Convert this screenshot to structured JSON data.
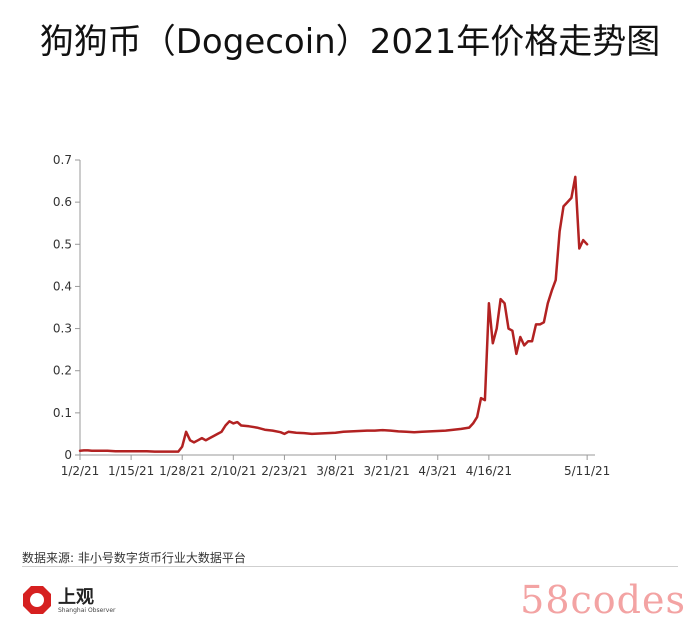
{
  "chart_data": {
    "type": "line",
    "title": "狗狗币（Dogecoin）2021年价格走势图",
    "xlabel": "",
    "ylabel": "",
    "ylim": [
      0,
      0.7
    ],
    "yticks": [
      "0",
      "0.1",
      "0.2",
      "0.3",
      "0.4",
      "0.5",
      "0.6",
      "0.7"
    ],
    "x_range": [
      "2021-01-02",
      "2021-05-13"
    ],
    "xticks": [
      {
        "date": "2021-01-02",
        "label": "1/2/21"
      },
      {
        "date": "2021-01-15",
        "label": "1/15/21"
      },
      {
        "date": "2021-01-28",
        "label": "1/28/21"
      },
      {
        "date": "2021-02-10",
        "label": "2/10/21"
      },
      {
        "date": "2021-02-23",
        "label": "2/23/21"
      },
      {
        "date": "2021-03-08",
        "label": "3/8/21"
      },
      {
        "date": "2021-03-21",
        "label": "3/21/21"
      },
      {
        "date": "2021-04-03",
        "label": "4/3/21"
      },
      {
        "date": "2021-04-16",
        "label": "4/16/21"
      },
      {
        "date": "2021-05-11",
        "label": "5/11/21"
      }
    ],
    "grid": false,
    "line_color": "#b22222",
    "series": [
      {
        "points": [
          [
            "2021-01-02",
            0.01
          ],
          [
            "2021-01-03",
            0.011
          ],
          [
            "2021-01-04",
            0.011
          ],
          [
            "2021-01-05",
            0.01
          ],
          [
            "2021-01-07",
            0.01
          ],
          [
            "2021-01-09",
            0.01
          ],
          [
            "2021-01-11",
            0.009
          ],
          [
            "2021-01-13",
            0.009
          ],
          [
            "2021-01-15",
            0.009
          ],
          [
            "2021-01-17",
            0.009
          ],
          [
            "2021-01-19",
            0.009
          ],
          [
            "2021-01-21",
            0.008
          ],
          [
            "2021-01-23",
            0.008
          ],
          [
            "2021-01-25",
            0.008
          ],
          [
            "2021-01-27",
            0.008
          ],
          [
            "2021-01-28",
            0.02
          ],
          [
            "2021-01-29",
            0.055
          ],
          [
            "2021-01-30",
            0.035
          ],
          [
            "2021-01-31",
            0.03
          ],
          [
            "2021-02-01",
            0.035
          ],
          [
            "2021-02-02",
            0.04
          ],
          [
            "2021-02-03",
            0.035
          ],
          [
            "2021-02-04",
            0.04
          ],
          [
            "2021-02-05",
            0.045
          ],
          [
            "2021-02-06",
            0.05
          ],
          [
            "2021-02-07",
            0.055
          ],
          [
            "2021-02-08",
            0.07
          ],
          [
            "2021-02-09",
            0.08
          ],
          [
            "2021-02-10",
            0.075
          ],
          [
            "2021-02-11",
            0.078
          ],
          [
            "2021-02-12",
            0.07
          ],
          [
            "2021-02-14",
            0.068
          ],
          [
            "2021-02-16",
            0.065
          ],
          [
            "2021-02-18",
            0.06
          ],
          [
            "2021-02-20",
            0.058
          ],
          [
            "2021-02-22",
            0.054
          ],
          [
            "2021-02-23",
            0.05
          ],
          [
            "2021-02-24",
            0.055
          ],
          [
            "2021-02-26",
            0.053
          ],
          [
            "2021-02-28",
            0.052
          ],
          [
            "2021-03-02",
            0.05
          ],
          [
            "2021-03-04",
            0.051
          ],
          [
            "2021-03-06",
            0.052
          ],
          [
            "2021-03-08",
            0.053
          ],
          [
            "2021-03-10",
            0.055
          ],
          [
            "2021-03-12",
            0.056
          ],
          [
            "2021-03-14",
            0.057
          ],
          [
            "2021-03-16",
            0.058
          ],
          [
            "2021-03-18",
            0.058
          ],
          [
            "2021-03-20",
            0.059
          ],
          [
            "2021-03-22",
            0.058
          ],
          [
            "2021-03-24",
            0.056
          ],
          [
            "2021-03-26",
            0.055
          ],
          [
            "2021-03-28",
            0.054
          ],
          [
            "2021-03-30",
            0.055
          ],
          [
            "2021-04-01",
            0.056
          ],
          [
            "2021-04-03",
            0.057
          ],
          [
            "2021-04-05",
            0.058
          ],
          [
            "2021-04-07",
            0.06
          ],
          [
            "2021-04-09",
            0.062
          ],
          [
            "2021-04-11",
            0.065
          ],
          [
            "2021-04-12",
            0.075
          ],
          [
            "2021-04-13",
            0.09
          ],
          [
            "2021-04-14",
            0.135
          ],
          [
            "2021-04-15",
            0.13
          ],
          [
            "2021-04-16",
            0.36
          ],
          [
            "2021-04-17",
            0.265
          ],
          [
            "2021-04-18",
            0.3
          ],
          [
            "2021-04-19",
            0.37
          ],
          [
            "2021-04-20",
            0.36
          ],
          [
            "2021-04-21",
            0.3
          ],
          [
            "2021-04-22",
            0.295
          ],
          [
            "2021-04-23",
            0.24
          ],
          [
            "2021-04-24",
            0.28
          ],
          [
            "2021-04-25",
            0.26
          ],
          [
            "2021-04-26",
            0.27
          ],
          [
            "2021-04-27",
            0.27
          ],
          [
            "2021-04-28",
            0.31
          ],
          [
            "2021-04-29",
            0.31
          ],
          [
            "2021-04-30",
            0.315
          ],
          [
            "2021-05-01",
            0.36
          ],
          [
            "2021-05-02",
            0.39
          ],
          [
            "2021-05-03",
            0.415
          ],
          [
            "2021-05-04",
            0.53
          ],
          [
            "2021-05-05",
            0.59
          ],
          [
            "2021-05-06",
            0.6
          ],
          [
            "2021-05-07",
            0.61
          ],
          [
            "2021-05-08",
            0.66
          ],
          [
            "2021-05-09",
            0.49
          ],
          [
            "2021-05-10",
            0.51
          ],
          [
            "2021-05-11",
            0.5
          ]
        ]
      }
    ]
  },
  "source": "数据来源: 非小号数字货币行业大数据平台",
  "logo": {
    "name": "上观",
    "subtitle": "Shanghai Observer",
    "mark_color": "#d62020"
  },
  "watermark": "58codes"
}
